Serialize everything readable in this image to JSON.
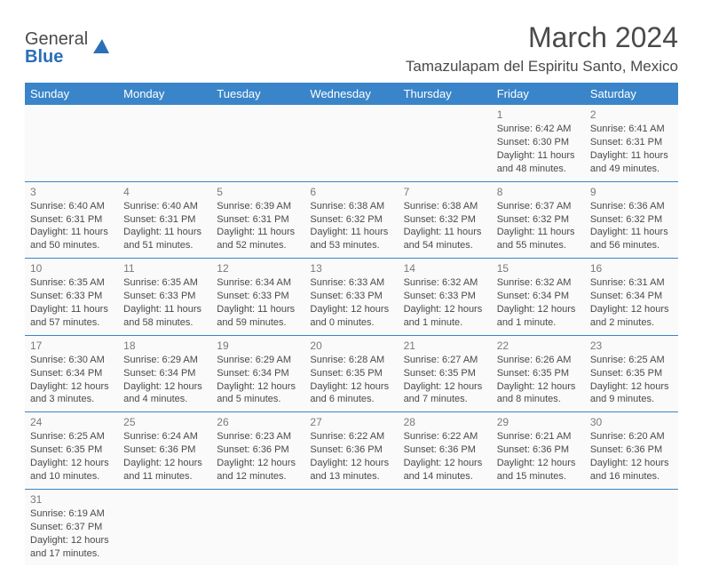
{
  "brand": {
    "name_part1": "General",
    "name_part2": "Blue",
    "logo_color": "#2a6fb8"
  },
  "title": {
    "month_year": "March 2024",
    "location": "Tamazulapam del Espiritu Santo, Mexico"
  },
  "colors": {
    "header_bg": "#3a85c9",
    "header_text": "#ffffff",
    "cell_bg": "#fafafa",
    "border": "#3a85c9",
    "text": "#4a4a4a",
    "daynum": "#7a7a7a"
  },
  "weekdays": [
    "Sunday",
    "Monday",
    "Tuesday",
    "Wednesday",
    "Thursday",
    "Friday",
    "Saturday"
  ],
  "weeks": [
    [
      null,
      null,
      null,
      null,
      null,
      {
        "d": "1",
        "sr": "Sunrise: 6:42 AM",
        "ss": "Sunset: 6:30 PM",
        "dl": "Daylight: 11 hours and 48 minutes."
      },
      {
        "d": "2",
        "sr": "Sunrise: 6:41 AM",
        "ss": "Sunset: 6:31 PM",
        "dl": "Daylight: 11 hours and 49 minutes."
      }
    ],
    [
      {
        "d": "3",
        "sr": "Sunrise: 6:40 AM",
        "ss": "Sunset: 6:31 PM",
        "dl": "Daylight: 11 hours and 50 minutes."
      },
      {
        "d": "4",
        "sr": "Sunrise: 6:40 AM",
        "ss": "Sunset: 6:31 PM",
        "dl": "Daylight: 11 hours and 51 minutes."
      },
      {
        "d": "5",
        "sr": "Sunrise: 6:39 AM",
        "ss": "Sunset: 6:31 PM",
        "dl": "Daylight: 11 hours and 52 minutes."
      },
      {
        "d": "6",
        "sr": "Sunrise: 6:38 AM",
        "ss": "Sunset: 6:32 PM",
        "dl": "Daylight: 11 hours and 53 minutes."
      },
      {
        "d": "7",
        "sr": "Sunrise: 6:38 AM",
        "ss": "Sunset: 6:32 PM",
        "dl": "Daylight: 11 hours and 54 minutes."
      },
      {
        "d": "8",
        "sr": "Sunrise: 6:37 AM",
        "ss": "Sunset: 6:32 PM",
        "dl": "Daylight: 11 hours and 55 minutes."
      },
      {
        "d": "9",
        "sr": "Sunrise: 6:36 AM",
        "ss": "Sunset: 6:32 PM",
        "dl": "Daylight: 11 hours and 56 minutes."
      }
    ],
    [
      {
        "d": "10",
        "sr": "Sunrise: 6:35 AM",
        "ss": "Sunset: 6:33 PM",
        "dl": "Daylight: 11 hours and 57 minutes."
      },
      {
        "d": "11",
        "sr": "Sunrise: 6:35 AM",
        "ss": "Sunset: 6:33 PM",
        "dl": "Daylight: 11 hours and 58 minutes."
      },
      {
        "d": "12",
        "sr": "Sunrise: 6:34 AM",
        "ss": "Sunset: 6:33 PM",
        "dl": "Daylight: 11 hours and 59 minutes."
      },
      {
        "d": "13",
        "sr": "Sunrise: 6:33 AM",
        "ss": "Sunset: 6:33 PM",
        "dl": "Daylight: 12 hours and 0 minutes."
      },
      {
        "d": "14",
        "sr": "Sunrise: 6:32 AM",
        "ss": "Sunset: 6:33 PM",
        "dl": "Daylight: 12 hours and 1 minute."
      },
      {
        "d": "15",
        "sr": "Sunrise: 6:32 AM",
        "ss": "Sunset: 6:34 PM",
        "dl": "Daylight: 12 hours and 1 minute."
      },
      {
        "d": "16",
        "sr": "Sunrise: 6:31 AM",
        "ss": "Sunset: 6:34 PM",
        "dl": "Daylight: 12 hours and 2 minutes."
      }
    ],
    [
      {
        "d": "17",
        "sr": "Sunrise: 6:30 AM",
        "ss": "Sunset: 6:34 PM",
        "dl": "Daylight: 12 hours and 3 minutes."
      },
      {
        "d": "18",
        "sr": "Sunrise: 6:29 AM",
        "ss": "Sunset: 6:34 PM",
        "dl": "Daylight: 12 hours and 4 minutes."
      },
      {
        "d": "19",
        "sr": "Sunrise: 6:29 AM",
        "ss": "Sunset: 6:34 PM",
        "dl": "Daylight: 12 hours and 5 minutes."
      },
      {
        "d": "20",
        "sr": "Sunrise: 6:28 AM",
        "ss": "Sunset: 6:35 PM",
        "dl": "Daylight: 12 hours and 6 minutes."
      },
      {
        "d": "21",
        "sr": "Sunrise: 6:27 AM",
        "ss": "Sunset: 6:35 PM",
        "dl": "Daylight: 12 hours and 7 minutes."
      },
      {
        "d": "22",
        "sr": "Sunrise: 6:26 AM",
        "ss": "Sunset: 6:35 PM",
        "dl": "Daylight: 12 hours and 8 minutes."
      },
      {
        "d": "23",
        "sr": "Sunrise: 6:25 AM",
        "ss": "Sunset: 6:35 PM",
        "dl": "Daylight: 12 hours and 9 minutes."
      }
    ],
    [
      {
        "d": "24",
        "sr": "Sunrise: 6:25 AM",
        "ss": "Sunset: 6:35 PM",
        "dl": "Daylight: 12 hours and 10 minutes."
      },
      {
        "d": "25",
        "sr": "Sunrise: 6:24 AM",
        "ss": "Sunset: 6:36 PM",
        "dl": "Daylight: 12 hours and 11 minutes."
      },
      {
        "d": "26",
        "sr": "Sunrise: 6:23 AM",
        "ss": "Sunset: 6:36 PM",
        "dl": "Daylight: 12 hours and 12 minutes."
      },
      {
        "d": "27",
        "sr": "Sunrise: 6:22 AM",
        "ss": "Sunset: 6:36 PM",
        "dl": "Daylight: 12 hours and 13 minutes."
      },
      {
        "d": "28",
        "sr": "Sunrise: 6:22 AM",
        "ss": "Sunset: 6:36 PM",
        "dl": "Daylight: 12 hours and 14 minutes."
      },
      {
        "d": "29",
        "sr": "Sunrise: 6:21 AM",
        "ss": "Sunset: 6:36 PM",
        "dl": "Daylight: 12 hours and 15 minutes."
      },
      {
        "d": "30",
        "sr": "Sunrise: 6:20 AM",
        "ss": "Sunset: 6:36 PM",
        "dl": "Daylight: 12 hours and 16 minutes."
      }
    ],
    [
      {
        "d": "31",
        "sr": "Sunrise: 6:19 AM",
        "ss": "Sunset: 6:37 PM",
        "dl": "Daylight: 12 hours and 17 minutes."
      },
      null,
      null,
      null,
      null,
      null,
      null
    ]
  ]
}
